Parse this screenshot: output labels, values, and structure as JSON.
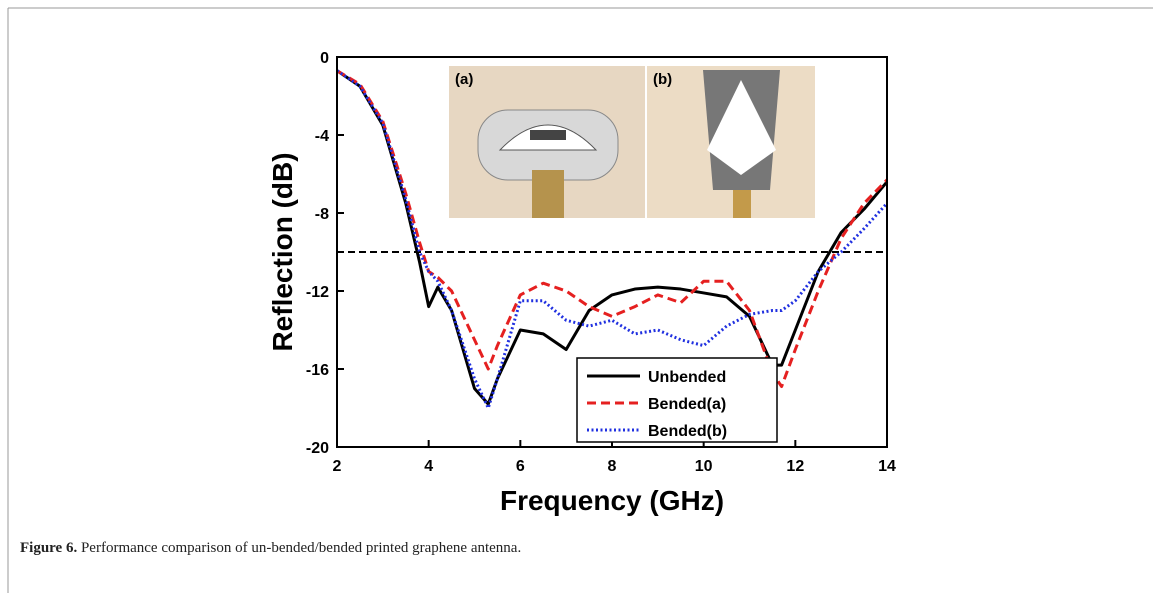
{
  "chart_data": {
    "type": "line",
    "x_label": "Frequency (GHz)",
    "y_label": "Reflection (dB)",
    "x": [
      2,
      2.5,
      3,
      3.5,
      3.8,
      4,
      4.2,
      4.5,
      5,
      5.3,
      5.5,
      6,
      6.5,
      7,
      7.5,
      8,
      8.5,
      9,
      9.5,
      10,
      10.5,
      11,
      11.5,
      11.7,
      12,
      12.5,
      13,
      13.5,
      14
    ],
    "series": [
      {
        "name": "Unbended",
        "color": "#000000",
        "line_style": "solid",
        "values": [
          -0.7,
          -1.5,
          -3.5,
          -7.5,
          -10.5,
          -12.8,
          -11.8,
          -13,
          -17,
          -17.8,
          -16.5,
          -14,
          -14.2,
          -15,
          -13,
          -12.2,
          -11.9,
          -11.8,
          -11.9,
          -12.1,
          -12.3,
          -13.3,
          -15.8,
          -15.8,
          -14,
          -11,
          -9,
          -7.8,
          -6.4
        ]
      },
      {
        "name": "Bended(a)",
        "color": "#e52020",
        "line_style": "dashed",
        "values": [
          -0.7,
          -1.4,
          -3.3,
          -7,
          -9.5,
          -11,
          -11.3,
          -12,
          -14.5,
          -16,
          -14.8,
          -12.2,
          -11.6,
          -12,
          -12.8,
          -13.3,
          -12.8,
          -12.2,
          -12.6,
          -11.5,
          -11.5,
          -13,
          -16.2,
          -16.9,
          -15,
          -12,
          -9.3,
          -7.5,
          -6.3
        ]
      },
      {
        "name": "Bended(b)",
        "color": "#2030e0",
        "line_style": "dotted",
        "values": [
          -0.7,
          -1.5,
          -3.4,
          -7.3,
          -10,
          -11,
          -11.5,
          -13,
          -16.5,
          -18,
          -16.5,
          -12.5,
          -12.5,
          -13.5,
          -13.8,
          -13.5,
          -14.2,
          -14,
          -14.5,
          -14.8,
          -13.8,
          -13.2,
          -13,
          -13,
          -12.5,
          -11,
          -10,
          -8.8,
          -7.5
        ]
      }
    ],
    "reference_line": -10,
    "xlim": [
      2,
      14
    ],
    "xticks": [
      2,
      4,
      6,
      8,
      10,
      12,
      14
    ],
    "ylim": [
      -20,
      0
    ],
    "yticks": [
      -20,
      -16,
      -12,
      -8,
      -4,
      0
    ],
    "grid": false,
    "legend": "lower right",
    "annotations": [
      "(a)",
      "(b)"
    ]
  },
  "caption": {
    "label": "Figure 6.",
    "text": "Performance comparison of un-bended/bended printed graphene antenna."
  }
}
